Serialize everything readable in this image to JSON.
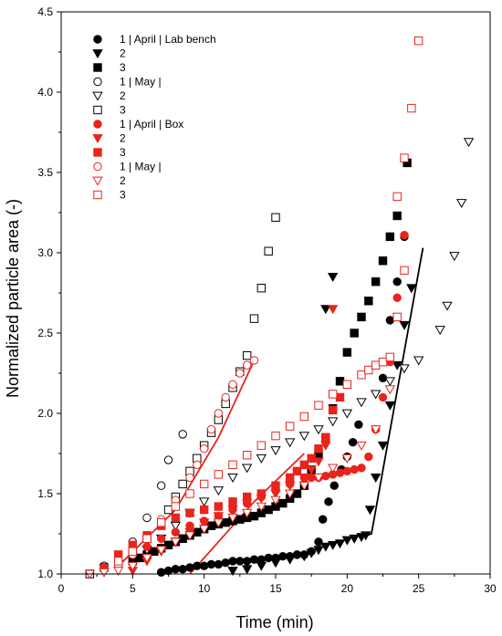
{
  "chart_data": {
    "type": "scatter",
    "title": "",
    "xlabel": "Time (min)",
    "ylabel": "Normalized particle area (-)",
    "xlim": [
      0,
      30
    ],
    "ylim": [
      1.0,
      4.5
    ],
    "xticks": [
      "0",
      "5",
      "10",
      "15",
      "20",
      "25",
      "30"
    ],
    "yticks": [
      "1.0",
      "1.5",
      "2.0",
      "2.5",
      "3.0",
      "3.5",
      "4.0",
      "4.5"
    ],
    "grid": false,
    "legend_position": "top-left",
    "series": [
      {
        "name": "1 | April | Lab bench",
        "marker": "circle",
        "filled": true,
        "color": "#000000",
        "points": [
          [
            7.0,
            1.01
          ],
          [
            7.5,
            1.02
          ],
          [
            8.0,
            1.03
          ],
          [
            8.5,
            1.03
          ],
          [
            9.0,
            1.04
          ],
          [
            9.5,
            1.05
          ],
          [
            10.0,
            1.05
          ],
          [
            10.5,
            1.06
          ],
          [
            11.0,
            1.06
          ],
          [
            11.5,
            1.07
          ],
          [
            12.0,
            1.08
          ],
          [
            12.5,
            1.08
          ],
          [
            13.0,
            1.08
          ],
          [
            13.5,
            1.09
          ],
          [
            14.0,
            1.09
          ],
          [
            14.5,
            1.1
          ],
          [
            15.0,
            1.1
          ],
          [
            15.5,
            1.11
          ],
          [
            16.0,
            1.11
          ],
          [
            16.5,
            1.12
          ],
          [
            17.0,
            1.12
          ],
          [
            17.5,
            1.14
          ],
          [
            18.0,
            1.2
          ],
          [
            18.3,
            1.34
          ],
          [
            18.7,
            1.45
          ],
          [
            19.1,
            1.55
          ],
          [
            19.6,
            1.65
          ],
          [
            20.0,
            1.73
          ],
          [
            20.4,
            1.82
          ],
          [
            20.8,
            1.93
          ],
          [
            22.5,
            2.22
          ],
          [
            23.0,
            2.58
          ],
          [
            23.5,
            2.82
          ],
          [
            24.0,
            3.1
          ]
        ]
      },
      {
        "name": "2",
        "marker": "triangle-down",
        "filled": true,
        "color": "#000000",
        "points": [
          [
            12.0,
            1.02
          ],
          [
            13.0,
            1.03
          ],
          [
            14.0,
            1.05
          ],
          [
            15.0,
            1.07
          ],
          [
            16.0,
            1.09
          ],
          [
            17.0,
            1.11
          ],
          [
            17.5,
            1.13
          ],
          [
            18.0,
            1.15
          ],
          [
            18.5,
            1.17
          ],
          [
            19.0,
            1.18
          ],
          [
            19.5,
            1.19
          ],
          [
            20.0,
            1.21
          ],
          [
            20.5,
            1.22
          ],
          [
            21.0,
            1.23
          ],
          [
            21.3,
            1.24
          ],
          [
            21.6,
            1.4
          ],
          [
            22.0,
            1.6
          ],
          [
            22.5,
            1.8
          ],
          [
            23.0,
            2.05
          ],
          [
            23.5,
            2.3
          ],
          [
            24.0,
            2.55
          ],
          [
            24.5,
            2.78
          ],
          [
            18.5,
            2.65
          ],
          [
            19.0,
            2.85
          ]
        ]
      },
      {
        "name": "3",
        "marker": "square",
        "filled": true,
        "color": "#000000",
        "points": [
          [
            5.0,
            1.08
          ],
          [
            5.5,
            1.1
          ],
          [
            6.0,
            1.12
          ],
          [
            6.5,
            1.14
          ],
          [
            7.0,
            1.16
          ],
          [
            7.5,
            1.18
          ],
          [
            8.0,
            1.2
          ],
          [
            8.5,
            1.22
          ],
          [
            9.0,
            1.24
          ],
          [
            9.5,
            1.26
          ],
          [
            10.0,
            1.28
          ],
          [
            10.5,
            1.3
          ],
          [
            11.0,
            1.31
          ],
          [
            11.5,
            1.32
          ],
          [
            12.0,
            1.33
          ],
          [
            12.5,
            1.34
          ],
          [
            13.0,
            1.35
          ],
          [
            13.5,
            1.36
          ],
          [
            14.0,
            1.38
          ],
          [
            14.5,
            1.4
          ],
          [
            15.0,
            1.42
          ],
          [
            15.5,
            1.44
          ],
          [
            16.0,
            1.47
          ],
          [
            16.5,
            1.5
          ],
          [
            17.0,
            1.55
          ],
          [
            17.5,
            1.65
          ],
          [
            18.0,
            1.75
          ],
          [
            18.5,
            1.85
          ],
          [
            19.0,
            2.03
          ],
          [
            19.5,
            2.2
          ],
          [
            20.0,
            2.38
          ],
          [
            20.5,
            2.5
          ],
          [
            21.0,
            2.6
          ],
          [
            21.5,
            2.7
          ],
          [
            22.0,
            2.82
          ],
          [
            22.5,
            2.95
          ],
          [
            23.0,
            3.1
          ],
          [
            23.5,
            3.23
          ],
          [
            24.2,
            3.56
          ]
        ]
      },
      {
        "name": "1 | May |",
        "marker": "circle",
        "filled": false,
        "color": "#000000",
        "points": [
          [
            3.0,
            1.05
          ],
          [
            4.0,
            1.1
          ],
          [
            5.0,
            1.2
          ],
          [
            6.0,
            1.35
          ],
          [
            7.0,
            1.55
          ],
          [
            7.5,
            1.71
          ],
          [
            8.5,
            1.87
          ]
        ]
      },
      {
        "name": "2",
        "marker": "triangle-down",
        "filled": false,
        "color": "#000000",
        "points": [
          [
            6.0,
            1.15
          ],
          [
            7.0,
            1.22
          ],
          [
            8.0,
            1.3
          ],
          [
            9.0,
            1.38
          ],
          [
            10.0,
            1.45
          ],
          [
            11.0,
            1.52
          ],
          [
            12.0,
            1.6
          ],
          [
            13.0,
            1.66
          ],
          [
            14.0,
            1.72
          ],
          [
            15.0,
            1.77
          ],
          [
            16.0,
            1.82
          ],
          [
            17.0,
            1.86
          ],
          [
            18.0,
            1.9
          ],
          [
            19.0,
            1.95
          ],
          [
            20.0,
            2.0
          ],
          [
            21.0,
            2.07
          ],
          [
            22.0,
            2.12
          ],
          [
            23.0,
            2.2
          ],
          [
            24.0,
            2.28
          ],
          [
            25.0,
            2.33
          ],
          [
            26.5,
            2.52
          ],
          [
            27.0,
            2.67
          ],
          [
            27.5,
            2.98
          ],
          [
            28.0,
            3.31
          ],
          [
            28.5,
            3.69
          ]
        ]
      },
      {
        "name": "3",
        "marker": "square",
        "filled": false,
        "color": "#000000",
        "points": [
          [
            2.0,
            1.0
          ],
          [
            3.0,
            1.04
          ],
          [
            4.0,
            1.08
          ],
          [
            5.0,
            1.14
          ],
          [
            6.0,
            1.22
          ],
          [
            7.0,
            1.32
          ],
          [
            7.5,
            1.4
          ],
          [
            8.0,
            1.48
          ],
          [
            8.5,
            1.56
          ],
          [
            9.0,
            1.64
          ],
          [
            9.5,
            1.72
          ],
          [
            10.0,
            1.8
          ],
          [
            10.5,
            1.88
          ],
          [
            11.0,
            1.96
          ],
          [
            11.5,
            2.06
          ],
          [
            12.0,
            2.16
          ],
          [
            12.5,
            2.26
          ],
          [
            13.0,
            2.36
          ],
          [
            13.5,
            2.59
          ],
          [
            14.0,
            2.78
          ],
          [
            14.5,
            3.01
          ],
          [
            15.0,
            3.22
          ]
        ]
      },
      {
        "name": "1 | April | Box",
        "marker": "circle",
        "filled": true,
        "color": "#e8241c",
        "points": [
          [
            3.0,
            1.04
          ],
          [
            4.0,
            1.08
          ],
          [
            5.0,
            1.12
          ],
          [
            6.0,
            1.17
          ],
          [
            7.0,
            1.22
          ],
          [
            8.0,
            1.26
          ],
          [
            9.0,
            1.3
          ],
          [
            10.0,
            1.33
          ],
          [
            11.0,
            1.36
          ],
          [
            12.0,
            1.4
          ],
          [
            13.0,
            1.44
          ],
          [
            14.0,
            1.48
          ],
          [
            15.0,
            1.52
          ],
          [
            16.0,
            1.56
          ],
          [
            17.0,
            1.6
          ],
          [
            17.5,
            1.6
          ],
          [
            18.0,
            1.6
          ],
          [
            18.5,
            1.61
          ],
          [
            19.0,
            1.62
          ],
          [
            19.5,
            1.63
          ],
          [
            20.0,
            1.64
          ],
          [
            20.5,
            1.65
          ],
          [
            21.0,
            1.66
          ],
          [
            21.5,
            1.73
          ],
          [
            22.0,
            1.9
          ],
          [
            22.5,
            2.1
          ],
          [
            23.0,
            2.32
          ],
          [
            23.5,
            2.72
          ],
          [
            24.0,
            3.11
          ]
        ]
      },
      {
        "name": "2",
        "marker": "triangle-down",
        "filled": true,
        "color": "#e8241c",
        "points": [
          [
            5.0,
            1.02
          ],
          [
            6.0,
            1.08
          ],
          [
            7.0,
            1.14
          ],
          [
            8.0,
            1.2
          ],
          [
            9.0,
            1.26
          ],
          [
            10.0,
            1.32
          ],
          [
            11.0,
            1.36
          ],
          [
            12.0,
            1.4
          ],
          [
            13.0,
            1.44
          ],
          [
            14.0,
            1.47
          ],
          [
            15.0,
            1.5
          ],
          [
            16.0,
            1.55
          ],
          [
            17.0,
            1.6
          ],
          [
            17.5,
            1.65
          ],
          [
            18.0,
            1.7
          ],
          [
            18.5,
            1.8
          ],
          [
            19.0,
            2.65
          ]
        ]
      },
      {
        "name": "3",
        "marker": "square",
        "filled": true,
        "color": "#e8241c",
        "points": [
          [
            4.0,
            1.12
          ],
          [
            5.0,
            1.18
          ],
          [
            6.0,
            1.24
          ],
          [
            7.0,
            1.3
          ],
          [
            8.0,
            1.35
          ],
          [
            9.0,
            1.38
          ],
          [
            10.0,
            1.4
          ],
          [
            11.0,
            1.42
          ],
          [
            12.0,
            1.45
          ],
          [
            13.0,
            1.48
          ],
          [
            14.0,
            1.5
          ],
          [
            15.0,
            1.55
          ],
          [
            16.0,
            1.6
          ],
          [
            16.5,
            1.64
          ],
          [
            17.0,
            1.68
          ],
          [
            17.5,
            1.72
          ],
          [
            18.0,
            1.78
          ],
          [
            18.5,
            1.85
          ],
          [
            19.0,
            2.02
          ],
          [
            19.5,
            2.1
          ]
        ]
      },
      {
        "name": "1 | May |",
        "marker": "circle",
        "filled": false,
        "color": "#e8241c",
        "points": [
          [
            4.0,
            1.05
          ],
          [
            5.0,
            1.12
          ],
          [
            6.0,
            1.22
          ],
          [
            7.0,
            1.34
          ],
          [
            8.0,
            1.46
          ],
          [
            9.0,
            1.6
          ],
          [
            9.5,
            1.68
          ],
          [
            10.0,
            1.78
          ],
          [
            10.5,
            1.9
          ],
          [
            11.0,
            2.0
          ],
          [
            11.5,
            2.1
          ],
          [
            12.0,
            2.18
          ],
          [
            12.5,
            2.25
          ],
          [
            13.0,
            2.3
          ],
          [
            13.5,
            2.33
          ]
        ]
      },
      {
        "name": "2",
        "marker": "triangle-down",
        "filled": false,
        "color": "#e8241c",
        "points": [
          [
            2.0,
            1.0
          ],
          [
            3.0,
            1.01
          ],
          [
            4.0,
            1.02
          ],
          [
            5.0,
            1.05
          ],
          [
            6.0,
            1.1
          ],
          [
            7.0,
            1.15
          ],
          [
            8.0,
            1.2
          ],
          [
            9.0,
            1.24
          ],
          [
            10.0,
            1.28
          ],
          [
            11.0,
            1.32
          ],
          [
            12.0,
            1.35
          ],
          [
            13.0,
            1.38
          ],
          [
            14.0,
            1.42
          ],
          [
            15.0,
            1.46
          ],
          [
            16.0,
            1.5
          ],
          [
            17.0,
            1.55
          ],
          [
            18.0,
            1.6
          ],
          [
            19.0,
            1.66
          ],
          [
            20.0,
            1.72
          ],
          [
            21.0,
            1.8
          ],
          [
            22.0,
            1.9
          ],
          [
            23.0,
            2.15
          ]
        ]
      },
      {
        "name": "3",
        "marker": "square",
        "filled": false,
        "color": "#e8241c",
        "points": [
          [
            4.0,
            1.08
          ],
          [
            5.0,
            1.14
          ],
          [
            6.0,
            1.22
          ],
          [
            7.0,
            1.32
          ],
          [
            8.0,
            1.42
          ],
          [
            9.0,
            1.5
          ],
          [
            10.0,
            1.56
          ],
          [
            11.0,
            1.62
          ],
          [
            12.0,
            1.68
          ],
          [
            13.0,
            1.74
          ],
          [
            14.0,
            1.8
          ],
          [
            15.0,
            1.86
          ],
          [
            16.0,
            1.92
          ],
          [
            17.0,
            1.98
          ],
          [
            18.0,
            2.05
          ],
          [
            19.0,
            2.12
          ],
          [
            20.0,
            2.18
          ],
          [
            21.0,
            2.24
          ],
          [
            21.5,
            2.27
          ],
          [
            22.0,
            2.3
          ],
          [
            22.5,
            2.32
          ],
          [
            23.0,
            2.35
          ],
          [
            23.5,
            2.6
          ],
          [
            24.0,
            2.89
          ],
          [
            23.5,
            3.35
          ],
          [
            24.0,
            3.59
          ],
          [
            24.5,
            3.9
          ],
          [
            25.0,
            4.32
          ]
        ]
      }
    ],
    "fit_lines": [
      {
        "color": "#000000",
        "points": [
          [
            21.0,
            1.23
          ],
          [
            21.7,
            1.25
          ],
          [
            25.3,
            3.03
          ]
        ]
      },
      {
        "color": "#e8241c",
        "points": [
          [
            4.0,
            1.05
          ],
          [
            8.0,
            1.4
          ],
          [
            11.0,
            1.85
          ],
          [
            13.5,
            2.33
          ]
        ]
      },
      {
        "color": "#e8241c",
        "points": [
          [
            9.0,
            1.0
          ],
          [
            13.5,
            1.45
          ],
          [
            17.0,
            1.75
          ]
        ]
      }
    ]
  }
}
